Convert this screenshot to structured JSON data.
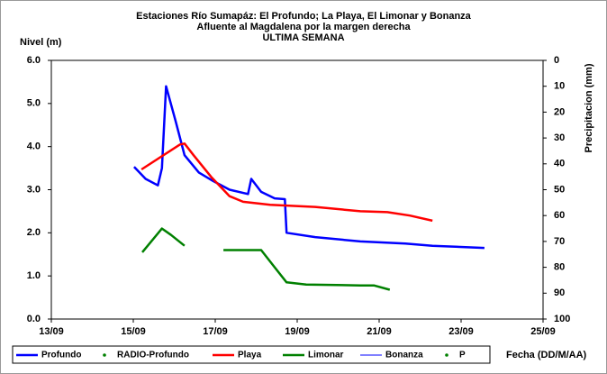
{
  "chart_data": {
    "type": "line",
    "title": [
      "Estaciones Río Sumapáz: El Profundo; La Playa, El Limonar y Bonanza",
      "Afluente al Magdalena por la margen derecha",
      "ULTIMA SEMANA"
    ],
    "y_label": "Nivel (m)",
    "y2_label": "Precipitacion (mm)",
    "x_label": "Fecha (DD/M/AA)",
    "xlim": [
      13,
      25
    ],
    "xticks": [
      {
        "value": 13,
        "label": "13/09"
      },
      {
        "value": 15,
        "label": "15/09"
      },
      {
        "value": 17,
        "label": "17/09"
      },
      {
        "value": 19,
        "label": "19/09"
      },
      {
        "value": 21,
        "label": "21/09"
      },
      {
        "value": 23,
        "label": "23/09"
      },
      {
        "value": 25,
        "label": "25/09"
      }
    ],
    "ylim": [
      0,
      6
    ],
    "yticks": [
      {
        "value": 0,
        "label": "0.0"
      },
      {
        "value": 1,
        "label": "1.0"
      },
      {
        "value": 2,
        "label": "2.0"
      },
      {
        "value": 3,
        "label": "3.0"
      },
      {
        "value": 4,
        "label": "4.0"
      },
      {
        "value": 5,
        "label": "5.0"
      },
      {
        "value": 6,
        "label": "6.0"
      }
    ],
    "y2lim": [
      100,
      0
    ],
    "y2ticks": [
      0,
      10,
      20,
      30,
      40,
      50,
      60,
      70,
      80,
      90,
      100
    ],
    "grid": false,
    "legend": "bottom",
    "series": [
      {
        "name": "Profundo",
        "color": "#0000ff",
        "style": "line",
        "width": 2.5,
        "x": [
          15.02,
          15.3,
          15.6,
          15.7,
          15.8,
          16.03,
          16.25,
          16.6,
          16.95,
          17.35,
          17.8,
          17.88,
          18.12,
          18.45,
          18.7,
          18.74,
          19.44,
          20.54,
          21.64,
          22.3,
          23.57
        ],
        "values": [
          3.53,
          3.25,
          3.1,
          3.5,
          5.4,
          4.6,
          3.8,
          3.4,
          3.2,
          3.0,
          2.9,
          3.25,
          2.95,
          2.8,
          2.78,
          2.0,
          1.9,
          1.8,
          1.75,
          1.7,
          1.65
        ]
      },
      {
        "name": "RADIO-Profundo",
        "color": "#008000",
        "style": "dot",
        "x": [],
        "values": []
      },
      {
        "name": "Playa",
        "color": "#ff0000",
        "style": "line",
        "width": 2.5,
        "x": [
          15.2,
          16.14,
          16.25,
          16.47,
          16.9,
          17.35,
          17.68,
          18.34,
          19.44,
          20.54,
          21.2,
          21.75,
          22.3
        ],
        "values": [
          3.47,
          4.05,
          4.07,
          3.8,
          3.3,
          2.85,
          2.72,
          2.65,
          2.6,
          2.5,
          2.48,
          2.4,
          2.28
        ]
      },
      {
        "name": "Limonar",
        "color": "#008000",
        "style": "line",
        "width": 2.5,
        "x": [
          15.22,
          15.7,
          15.92,
          16.25,
          16.7,
          17.2,
          17.8,
          18.12,
          18.45,
          18.74,
          19.22,
          20.54,
          20.87,
          21.26
        ],
        "values": [
          1.55,
          2.1,
          1.95,
          1.7,
          null,
          1.6,
          1.6,
          1.6,
          1.2,
          0.85,
          0.8,
          0.78,
          0.78,
          0.68
        ]
      },
      {
        "name": "Bonanza",
        "color": "#0000ff",
        "style": "line",
        "width": 1,
        "x": [],
        "values": []
      },
      {
        "name": "P",
        "color": "#008000",
        "style": "dot",
        "x": [],
        "values": []
      }
    ]
  }
}
